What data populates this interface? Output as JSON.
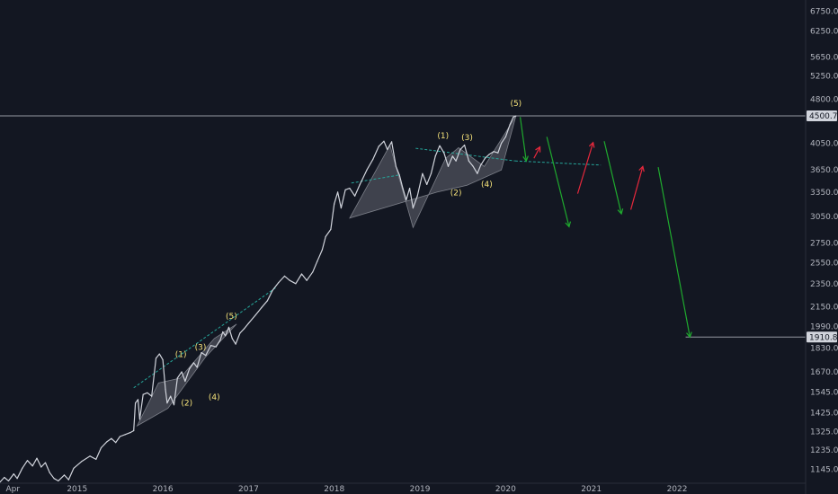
{
  "chart_data": {
    "type": "line",
    "title": "",
    "xlabel": "",
    "ylabel": "",
    "scale": "log",
    "x_range": [
      2014.1,
      2023.5
    ],
    "ylim": [
      1085,
      7050
    ],
    "colors": {
      "background": "#131722",
      "price": "#d1d4dc",
      "bearish_arrow": "#1faa2e",
      "bullish_arrow": "#e5283c",
      "pattern_fill": "#b2b5be",
      "wave_label": "#f6e37a",
      "trend_line": "#26a69a",
      "horizontal_line": "#9598a1",
      "price_tag": "#d1d4dc"
    },
    "y_ticks": [
      "1145.00",
      "1235.00",
      "1325.00",
      "1425.00",
      "1545.00",
      "1670.00",
      "1830.00",
      "1990.00",
      "2150.00",
      "2350.00",
      "2550.00",
      "2750.00",
      "3050.00",
      "3350.00",
      "3650.00",
      "4050.00",
      "4500.78",
      "4800.00",
      "5250.00",
      "5650.00",
      "6250.00",
      "6750.00"
    ],
    "y_tick_values": [
      1145,
      1235,
      1325,
      1425,
      1545,
      1670,
      1830,
      1990,
      2150,
      2350,
      2550,
      2750,
      3050,
      3350,
      3650,
      4050,
      4500.78,
      4800,
      5250,
      5650,
      6250,
      6750
    ],
    "x_ticks": [
      {
        "label": "Apr",
        "x": 2014.25
      },
      {
        "label": "2015",
        "x": 2015.0
      },
      {
        "label": "2016",
        "x": 2016.0
      },
      {
        "label": "2017",
        "x": 2017.0
      },
      {
        "label": "2018",
        "x": 2018.0
      },
      {
        "label": "2019",
        "x": 2019.0
      },
      {
        "label": "2020",
        "x": 2020.0
      },
      {
        "label": "2021",
        "x": 2021.0
      },
      {
        "label": "2022",
        "x": 2022.0
      }
    ],
    "price_series": {
      "name": "",
      "points": [
        [
          2014.1,
          1090
        ],
        [
          2014.15,
          1110
        ],
        [
          2014.2,
          1095
        ],
        [
          2014.26,
          1125
        ],
        [
          2014.3,
          1105
        ],
        [
          2014.36,
          1150
        ],
        [
          2014.42,
          1185
        ],
        [
          2014.48,
          1160
        ],
        [
          2014.53,
          1195
        ],
        [
          2014.58,
          1155
        ],
        [
          2014.63,
          1175
        ],
        [
          2014.68,
          1130
        ],
        [
          2014.73,
          1105
        ],
        [
          2014.78,
          1095
        ],
        [
          2014.85,
          1120
        ],
        [
          2014.9,
          1100
        ],
        [
          2014.96,
          1150
        ],
        [
          2015.05,
          1180
        ],
        [
          2015.15,
          1205
        ],
        [
          2015.22,
          1190
        ],
        [
          2015.28,
          1245
        ],
        [
          2015.35,
          1275
        ],
        [
          2015.4,
          1290
        ],
        [
          2015.45,
          1270
        ],
        [
          2015.5,
          1300
        ],
        [
          2015.56,
          1310
        ],
        [
          2015.62,
          1320
        ],
        [
          2015.66,
          1330
        ],
        [
          2015.68,
          1480
        ],
        [
          2015.71,
          1500
        ],
        [
          2015.73,
          1390
        ],
        [
          2015.77,
          1530
        ],
        [
          2015.82,
          1540
        ],
        [
          2015.87,
          1520
        ],
        [
          2015.92,
          1760
        ],
        [
          2015.96,
          1790
        ],
        [
          2016.0,
          1750
        ],
        [
          2016.03,
          1560
        ],
        [
          2016.05,
          1480
        ],
        [
          2016.09,
          1520
        ],
        [
          2016.13,
          1470
        ],
        [
          2016.17,
          1630
        ],
        [
          2016.22,
          1670
        ],
        [
          2016.26,
          1610
        ],
        [
          2016.31,
          1690
        ],
        [
          2016.36,
          1730
        ],
        [
          2016.4,
          1700
        ],
        [
          2016.45,
          1800
        ],
        [
          2016.5,
          1780
        ],
        [
          2016.56,
          1850
        ],
        [
          2016.62,
          1840
        ],
        [
          2016.67,
          1890
        ],
        [
          2016.7,
          1950
        ],
        [
          2016.73,
          1920
        ],
        [
          2016.77,
          1985
        ],
        [
          2016.81,
          1900
        ],
        [
          2016.85,
          1860
        ],
        [
          2016.9,
          1940
        ],
        [
          2016.95,
          1975
        ],
        [
          2017.0,
          2015
        ],
        [
          2017.08,
          2080
        ],
        [
          2017.15,
          2140
        ],
        [
          2017.22,
          2200
        ],
        [
          2017.28,
          2290
        ],
        [
          2017.35,
          2360
        ],
        [
          2017.42,
          2420
        ],
        [
          2017.48,
          2380
        ],
        [
          2017.55,
          2350
        ],
        [
          2017.62,
          2440
        ],
        [
          2017.68,
          2380
        ],
        [
          2017.75,
          2460
        ],
        [
          2017.8,
          2560
        ],
        [
          2017.86,
          2680
        ],
        [
          2017.9,
          2820
        ],
        [
          2017.96,
          2900
        ],
        [
          2018.0,
          3200
        ],
        [
          2018.04,
          3350
        ],
        [
          2018.08,
          3150
        ],
        [
          2018.13,
          3380
        ],
        [
          2018.18,
          3400
        ],
        [
          2018.24,
          3300
        ],
        [
          2018.3,
          3450
        ],
        [
          2018.38,
          3650
        ],
        [
          2018.45,
          3800
        ],
        [
          2018.52,
          4000
        ],
        [
          2018.58,
          4080
        ],
        [
          2018.62,
          3950
        ],
        [
          2018.67,
          4070
        ],
        [
          2018.72,
          3700
        ],
        [
          2018.76,
          3580
        ],
        [
          2018.8,
          3400
        ],
        [
          2018.84,
          3250
        ],
        [
          2018.88,
          3400
        ],
        [
          2018.92,
          3150
        ],
        [
          2018.97,
          3300
        ],
        [
          2019.03,
          3600
        ],
        [
          2019.08,
          3450
        ],
        [
          2019.13,
          3600
        ],
        [
          2019.18,
          3850
        ],
        [
          2019.23,
          4010
        ],
        [
          2019.28,
          3900
        ],
        [
          2019.33,
          3700
        ],
        [
          2019.38,
          3850
        ],
        [
          2019.42,
          3780
        ],
        [
          2019.47,
          3950
        ],
        [
          2019.52,
          4020
        ],
        [
          2019.57,
          3780
        ],
        [
          2019.62,
          3700
        ],
        [
          2019.67,
          3600
        ],
        [
          2019.71,
          3720
        ],
        [
          2019.76,
          3820
        ],
        [
          2019.81,
          3880
        ],
        [
          2019.86,
          3920
        ],
        [
          2019.91,
          3900
        ],
        [
          2019.95,
          4050
        ],
        [
          2020.0,
          4150
        ],
        [
          2020.05,
          4350
        ],
        [
          2020.09,
          4480
        ],
        [
          2020.12,
          4500
        ]
      ]
    },
    "projections": [
      {
        "type": "bearish",
        "from": [
          2020.17,
          4480
        ],
        "to": [
          2020.24,
          3780
        ]
      },
      {
        "type": "bullish",
        "from": [
          2020.33,
          3820
        ],
        "to": [
          2020.4,
          3990
        ]
      },
      {
        "type": "bearish",
        "from": [
          2020.48,
          4150
        ],
        "to": [
          2020.74,
          2930
        ]
      },
      {
        "type": "bullish",
        "from": [
          2020.84,
          3330
        ],
        "to": [
          2021.02,
          4060
        ]
      },
      {
        "type": "bearish",
        "from": [
          2021.15,
          4080
        ],
        "to": [
          2021.35,
          3080
        ]
      },
      {
        "type": "bullish",
        "from": [
          2021.46,
          3130
        ],
        "to": [
          2021.6,
          3700
        ]
      },
      {
        "type": "bearish",
        "from": [
          2021.78,
          3690
        ],
        "to": [
          2022.15,
          1910.88
        ]
      }
    ],
    "trend_lines": [
      {
        "from": [
          2015.66,
          1570
        ],
        "to": [
          2017.33,
          2320
        ]
      },
      {
        "from": [
          2018.95,
          3970
        ],
        "to": [
          2020.11,
          3780
        ]
      },
      {
        "from": [
          2020.11,
          3780
        ],
        "to": [
          2021.11,
          3720
        ]
      },
      {
        "from": [
          2018.2,
          3470
        ],
        "to": [
          2018.76,
          3580
        ]
      }
    ],
    "patterns": [
      {
        "points": [
          [
            2015.7,
            1355
          ],
          [
            2016.06,
            1450
          ],
          [
            2016.5,
            1770
          ],
          [
            2016.86,
            2010
          ],
          [
            2016.6,
            1900
          ],
          [
            2016.2,
            1630
          ],
          [
            2015.95,
            1600
          ]
        ]
      },
      {
        "points": [
          [
            2018.18,
            3030
          ],
          [
            2018.65,
            4020
          ],
          [
            2018.92,
            2920
          ],
          [
            2019.3,
            3820
          ],
          [
            2019.45,
            3980
          ],
          [
            2019.75,
            3700
          ],
          [
            2020.12,
            4500
          ],
          [
            2019.95,
            3650
          ],
          [
            2019.55,
            3440
          ],
          [
            2019.2,
            3350
          ]
        ]
      }
    ],
    "wave_labels": [
      {
        "text": "(1)",
        "x": 2016.21,
        "y": 1770
      },
      {
        "text": "(2)",
        "x": 2016.28,
        "y": 1465
      },
      {
        "text": "(3)",
        "x": 2016.44,
        "y": 1820
      },
      {
        "text": "(4)",
        "x": 2016.6,
        "y": 1500
      },
      {
        "text": "(5)",
        "x": 2016.8,
        "y": 2050
      },
      {
        "text": "(1)",
        "x": 2019.27,
        "y": 4125
      },
      {
        "text": "(2)",
        "x": 2019.42,
        "y": 3310
      },
      {
        "text": "(3)",
        "x": 2019.55,
        "y": 4100
      },
      {
        "text": "(4)",
        "x": 2019.78,
        "y": 3420
      },
      {
        "text": "(5)",
        "x": 2020.12,
        "y": 4680
      }
    ],
    "horizontal_lines": [
      {
        "value": 4500.78,
        "label": "4500.78",
        "from_x": 2014.1
      },
      {
        "value": 1910.88,
        "label": "1910.88",
        "from_x": 2022.1
      }
    ]
  }
}
